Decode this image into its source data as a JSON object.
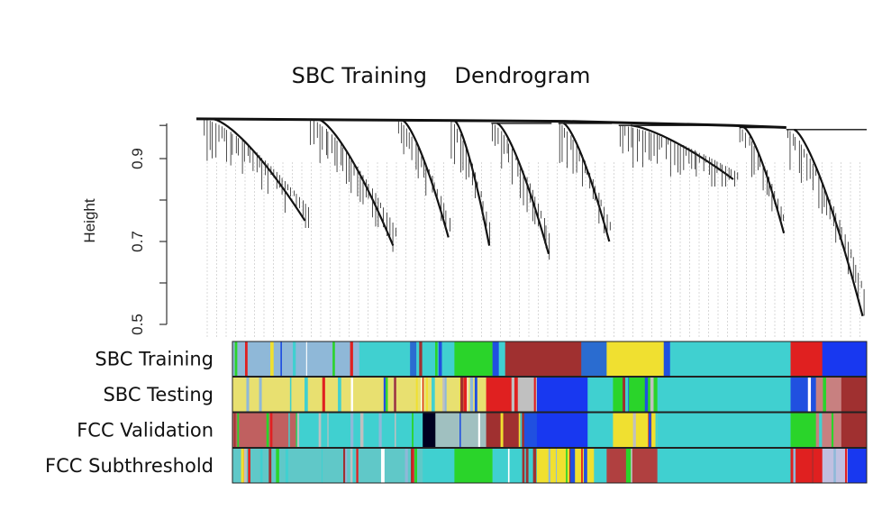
{
  "chart_data": {
    "type": "dendrogram",
    "title": "SBC Training    Dendrogram",
    "ylabel": "Height",
    "ylim": [
      0.5,
      1.0
    ],
    "yticks": [
      0.5,
      0.7,
      0.9
    ],
    "yticklabels": [
      "0.5",
      "0.7",
      "0.9"
    ],
    "leaf_count": 2400,
    "branches": [
      {
        "name": "branch-1",
        "x_start": 0.01,
        "x_end": 0.17,
        "join_height": 0.995,
        "min_height": 0.75
      },
      {
        "name": "branch-2",
        "x_start": 0.17,
        "x_end": 0.3,
        "join_height": 0.994,
        "min_height": 0.69
      },
      {
        "name": "branch-3",
        "x_start": 0.3,
        "x_end": 0.38,
        "join_height": 0.992,
        "min_height": 0.71
      },
      {
        "name": "branch-4",
        "x_start": 0.38,
        "x_end": 0.44,
        "join_height": 0.99,
        "min_height": 0.69
      },
      {
        "name": "branch-5",
        "x_start": 0.44,
        "x_end": 0.53,
        "join_height": 0.985,
        "min_height": 0.67
      },
      {
        "name": "branch-6",
        "x_start": 0.54,
        "x_end": 0.62,
        "join_height": 0.985,
        "min_height": 0.7
      },
      {
        "name": "branch-7",
        "x_start": 0.63,
        "x_end": 0.81,
        "join_height": 0.98,
        "min_height": 0.85
      },
      {
        "name": "branch-8",
        "x_start": 0.81,
        "x_end": 0.88,
        "join_height": 0.975,
        "min_height": 0.72
      },
      {
        "name": "branch-9",
        "x_start": 0.88,
        "x_end": 1.0,
        "join_height": 0.97,
        "min_height": 0.52
      }
    ],
    "color_rows": [
      {
        "label": "SBC Training",
        "segments": [
          {
            "start": 0.0,
            "end": 0.2,
            "color": "#8fb8d8",
            "striped": true
          },
          {
            "start": 0.2,
            "end": 0.28,
            "color": "#40d0d0"
          },
          {
            "start": 0.28,
            "end": 0.29,
            "color": "#2a6cd0"
          },
          {
            "start": 0.29,
            "end": 0.35,
            "color": "#40d0d0",
            "striped": true
          },
          {
            "start": 0.35,
            "end": 0.41,
            "color": "#2ad42a"
          },
          {
            "start": 0.41,
            "end": 0.42,
            "color": "#2050e0"
          },
          {
            "start": 0.42,
            "end": 0.43,
            "color": "#40d0d0"
          },
          {
            "start": 0.43,
            "end": 0.55,
            "color": "#a03030"
          },
          {
            "start": 0.55,
            "end": 0.59,
            "color": "#2a6cd0"
          },
          {
            "start": 0.59,
            "end": 0.68,
            "color": "#f0e030"
          },
          {
            "start": 0.68,
            "end": 0.69,
            "color": "#2050e0"
          },
          {
            "start": 0.69,
            "end": 0.88,
            "color": "#40d0d0"
          },
          {
            "start": 0.88,
            "end": 0.93,
            "color": "#e02020"
          },
          {
            "start": 0.93,
            "end": 1.0,
            "color": "#1838f0"
          }
        ]
      },
      {
        "label": "SBC Testing",
        "segments": [
          {
            "start": 0.0,
            "end": 0.4,
            "color": "#e8e070",
            "striped": true
          },
          {
            "start": 0.4,
            "end": 0.44,
            "color": "#e02020"
          },
          {
            "start": 0.44,
            "end": 0.48,
            "color": "#c0c0c0",
            "striped": true
          },
          {
            "start": 0.48,
            "end": 0.56,
            "color": "#1838f0"
          },
          {
            "start": 0.56,
            "end": 0.6,
            "color": "#40d0d0"
          },
          {
            "start": 0.6,
            "end": 0.67,
            "color": "#2ad42a",
            "striped": true
          },
          {
            "start": 0.67,
            "end": 0.88,
            "color": "#40d0d0"
          },
          {
            "start": 0.88,
            "end": 0.92,
            "color": "#2050e0",
            "striped": true
          },
          {
            "start": 0.92,
            "end": 0.96,
            "color": "#c88080",
            "striped": true
          },
          {
            "start": 0.96,
            "end": 1.0,
            "color": "#a03030"
          }
        ]
      },
      {
        "label": "FCC Validation",
        "segments": [
          {
            "start": 0.0,
            "end": 0.1,
            "color": "#c06060",
            "striped": true
          },
          {
            "start": 0.1,
            "end": 0.3,
            "color": "#40d0d0",
            "striped": true
          },
          {
            "start": 0.3,
            "end": 0.32,
            "color": "#000020"
          },
          {
            "start": 0.32,
            "end": 0.4,
            "color": "#a0c0c0",
            "striped": true
          },
          {
            "start": 0.4,
            "end": 0.46,
            "color": "#a03030",
            "striped": true
          },
          {
            "start": 0.46,
            "end": 0.48,
            "color": "#2050e0"
          },
          {
            "start": 0.48,
            "end": 0.56,
            "color": "#1838f0"
          },
          {
            "start": 0.56,
            "end": 0.6,
            "color": "#40d0d0"
          },
          {
            "start": 0.6,
            "end": 0.67,
            "color": "#f0e030",
            "striped": true
          },
          {
            "start": 0.67,
            "end": 0.88,
            "color": "#40d0d0"
          },
          {
            "start": 0.88,
            "end": 0.92,
            "color": "#2ad42a"
          },
          {
            "start": 0.92,
            "end": 0.96,
            "color": "#c88080",
            "striped": true
          },
          {
            "start": 0.96,
            "end": 1.0,
            "color": "#a03030"
          }
        ]
      },
      {
        "label": "FCC Subthreshold",
        "segments": [
          {
            "start": 0.0,
            "end": 0.3,
            "color": "#60c8c8",
            "striped": true
          },
          {
            "start": 0.3,
            "end": 0.35,
            "color": "#40d0d0"
          },
          {
            "start": 0.35,
            "end": 0.41,
            "color": "#2ad42a"
          },
          {
            "start": 0.41,
            "end": 0.48,
            "color": "#40d0d0",
            "striped": true
          },
          {
            "start": 0.48,
            "end": 0.57,
            "color": "#f0e030",
            "striped": true
          },
          {
            "start": 0.57,
            "end": 0.59,
            "color": "#40d0d0"
          },
          {
            "start": 0.59,
            "end": 0.67,
            "color": "#b04040",
            "striped": true
          },
          {
            "start": 0.67,
            "end": 0.88,
            "color": "#40d0d0"
          },
          {
            "start": 0.88,
            "end": 0.93,
            "color": "#e02020",
            "striped": true
          },
          {
            "start": 0.93,
            "end": 0.97,
            "color": "#c0c0e0",
            "striped": true
          },
          {
            "start": 0.97,
            "end": 1.0,
            "color": "#1838f0"
          }
        ]
      }
    ]
  }
}
